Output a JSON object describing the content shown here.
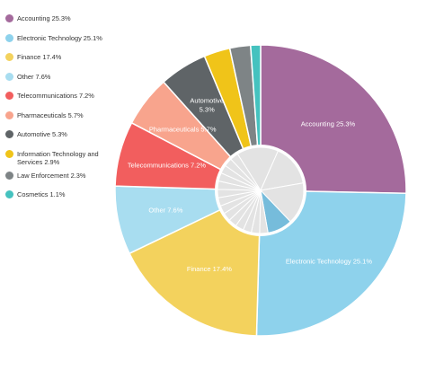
{
  "chart_data": {
    "type": "pie",
    "title": "",
    "categories": [
      "Accounting",
      "Electronic Technology",
      "Finance",
      "Other",
      "Telecommunications",
      "Pharmaceuticals",
      "Automotive",
      "Information Technology and Services",
      "Law Enforcement",
      "Cosmetics"
    ],
    "values": [
      25.3,
      25.1,
      17.4,
      7.6,
      7.2,
      5.7,
      5.3,
      2.9,
      2.3,
      1.1
    ],
    "colors": [
      "#A46A9C",
      "#8ED2EC",
      "#F3D25D",
      "#A8DDF0",
      "#F25E5E",
      "#F8A48D",
      "#5F6467",
      "#F0C419",
      "#7E8486",
      "#45C2BF"
    ],
    "legend": [
      "Accounting 25.3%",
      "Electronic Technology 25.1%",
      "Finance 17.4%",
      "Other 7.6%",
      "Telecommunications 7.2%",
      "Pharmaceuticals 5.7%",
      "Automotive 5.3%",
      "Information Technology and Services 2.9%",
      "Law Enforcement 2.3%",
      "Cosmetics 1.1%"
    ],
    "slice_labels": [
      "Accounting 25.3%",
      "Electronic Technology 25.1%",
      "Finance 17.4%",
      "Other 7.6%",
      "Telecommunications 7.2%",
      "Pharmaceuticals 5.7%",
      "Automotive 5.3%",
      "",
      "",
      ""
    ],
    "legend_position": "left",
    "inner_pie": {
      "highlight_color": "#76BCDB",
      "base_color": "#E3E3E3",
      "slice_count": 18
    }
  }
}
